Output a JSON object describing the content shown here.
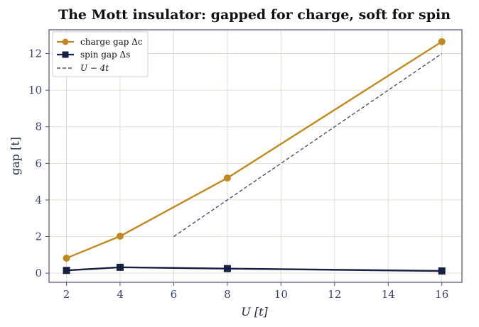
{
  "chart_data": {
    "type": "line",
    "title": "The Mott insulator: gapped for charge, soft for spin",
    "xlabel": "U  [t]",
    "ylabel": "gap  [t]",
    "xlim": [
      1.35,
      16.75
    ],
    "ylim": [
      -0.5,
      13.3
    ],
    "xticks": [
      2,
      4,
      6,
      8,
      10,
      12,
      14,
      16
    ],
    "yticks": [
      0,
      2,
      4,
      6,
      8,
      10,
      12
    ],
    "grid": true,
    "legend_position": "top-left",
    "series": [
      {
        "name": "charge gap Δc",
        "color": "#c08a22",
        "marker": "circle",
        "style": "solid",
        "x": [
          2,
          4,
          8,
          16
        ],
        "y": [
          0.82,
          2.02,
          5.2,
          12.65
        ]
      },
      {
        "name": "spin gap Δs",
        "color": "#162040",
        "marker": "square",
        "style": "solid",
        "x": [
          2,
          4,
          8,
          16
        ],
        "y": [
          0.15,
          0.32,
          0.25,
          0.12
        ]
      },
      {
        "name": "U − 4t",
        "color": "#4a5070",
        "marker": "none",
        "style": "dashed",
        "x": [
          6,
          16
        ],
        "y": [
          2,
          12
        ]
      }
    ]
  }
}
